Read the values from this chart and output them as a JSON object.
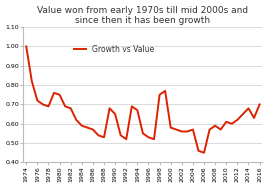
{
  "title": "Value won from early 1970s till mid 2000s and\nsince then it has been growth",
  "legend_label": "Growth vs Value",
  "line_color": "#dd2200",
  "background_color": "#ffffff",
  "plot_bg_color": "#ffffff",
  "years": [
    1974,
    1975,
    1976,
    1977,
    1978,
    1979,
    1980,
    1981,
    1982,
    1983,
    1984,
    1985,
    1986,
    1987,
    1988,
    1989,
    1990,
    1991,
    1992,
    1993,
    1994,
    1995,
    1996,
    1997,
    1998,
    1999,
    2000,
    2001,
    2002,
    2003,
    2004,
    2005,
    2006,
    2007,
    2008,
    2009,
    2010,
    2011,
    2012,
    2013,
    2014,
    2015,
    2016
  ],
  "values": [
    1.0,
    0.82,
    0.72,
    0.7,
    0.69,
    0.76,
    0.75,
    0.69,
    0.68,
    0.62,
    0.59,
    0.58,
    0.57,
    0.54,
    0.53,
    0.68,
    0.65,
    0.54,
    0.52,
    0.69,
    0.67,
    0.55,
    0.53,
    0.52,
    0.75,
    0.77,
    0.58,
    0.57,
    0.56,
    0.56,
    0.57,
    0.46,
    0.45,
    0.57,
    0.59,
    0.57,
    0.61,
    0.6,
    0.62,
    0.65,
    0.68,
    0.63,
    0.7
  ],
  "ylim": [
    0.4,
    1.1
  ],
  "yticks": [
    0.4,
    0.5,
    0.6,
    0.7,
    0.8,
    0.9,
    1.0,
    1.1
  ],
  "xticks": [
    1974,
    1976,
    1978,
    1980,
    1982,
    1984,
    1986,
    1988,
    1990,
    1992,
    1994,
    1996,
    1998,
    2000,
    2002,
    2004,
    2006,
    2008,
    2010,
    2012,
    2014,
    2016
  ],
  "title_fontsize": 6.5,
  "tick_fontsize": 4.5,
  "legend_fontsize": 5.5,
  "linewidth": 1.4
}
